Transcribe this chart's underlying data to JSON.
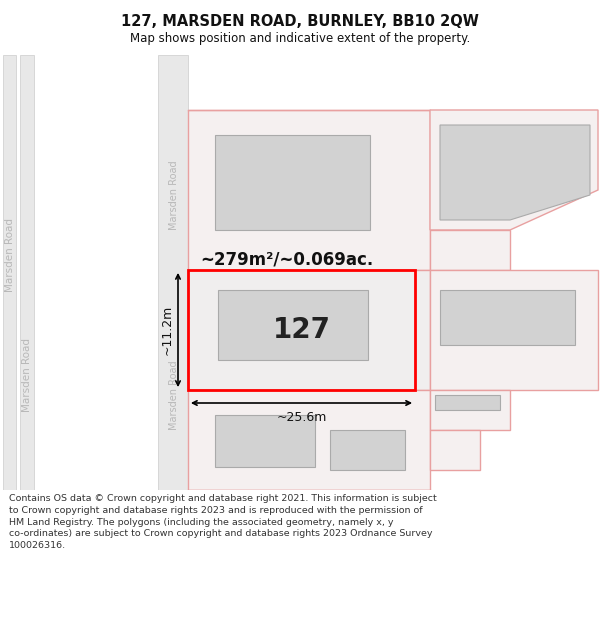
{
  "title": "127, MARSDEN ROAD, BURNLEY, BB10 2QW",
  "subtitle": "Map shows position and indicative extent of the property.",
  "footer": "Contains OS data © Crown copyright and database right 2021. This information is subject to Crown copyright and database rights 2023 and is reproduced with the permission of HM Land Registry. The polygons (including the associated geometry, namely x, y co-ordinates) are subject to Crown copyright and database rights 2023 Ordnance Survey 100026316.",
  "label_127": "127",
  "area_label": "~279m²/~0.069ac.",
  "dim_width": "~25.6m",
  "dim_height": "~11.2m",
  "road_label": "Marsden Road",
  "bg_map": "#f5f4f0",
  "plot_edge_pink": "#e8a0a0",
  "plot_edge_red": "#ff0000",
  "bldg_fill": "#d2d2d2",
  "bldg_edge": "#aaaaaa",
  "road_fill": "#e8e8e8",
  "road_edge": "#cccccc"
}
